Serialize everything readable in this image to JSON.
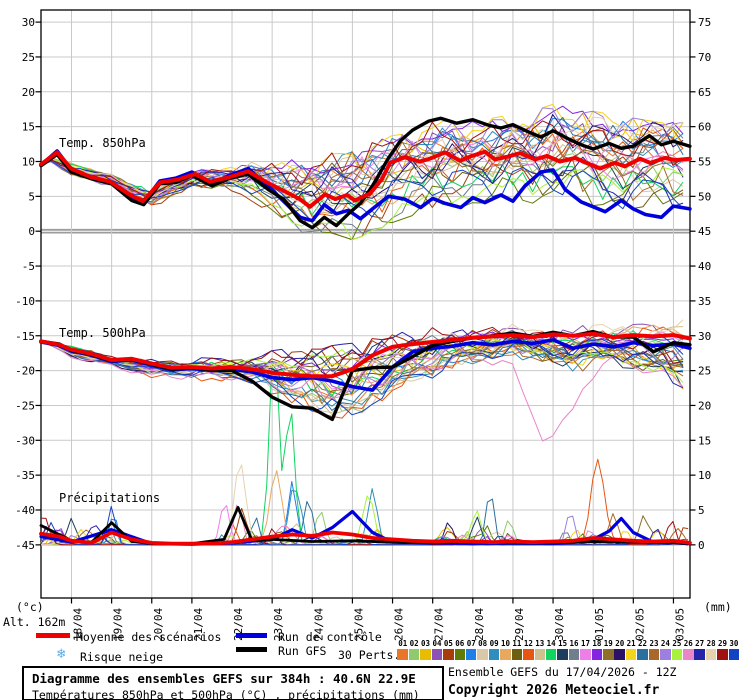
{
  "axes": {
    "unit_left": "(°c)",
    "unit_right": "(mm)",
    "alt_label": "Alt. 162m",
    "left_ticks": [
      "30",
      "25",
      "20",
      "15",
      "10",
      "5",
      "0",
      "-5",
      "-10",
      "-15",
      "-20",
      "-25",
      "-30",
      "-35",
      "-40",
      "-45"
    ],
    "right_ticks": [
      "75",
      "70",
      "65",
      "60",
      "55",
      "50",
      "45",
      "40",
      "35",
      "30",
      "25",
      "20",
      "15",
      "10",
      "5",
      "0"
    ]
  },
  "panels": {
    "t850_label": "Temp. 850hPa",
    "t500_label": "Temp. 500hPa",
    "precip_label": "Précipitations"
  },
  "legend": {
    "mean": "Moyenne des scénarios",
    "control": "Run de contrôle",
    "gfs": "Run GFS",
    "perts": "30 Perts.",
    "snow": "Risque neige",
    "snow_glyph": "❄"
  },
  "footer": {
    "title_line1": "Diagramme des ensembles GEFS sur 384h : 40.6N 22.9E",
    "title_line2": "Températures 850hPa et 500hPa (°C) , précipitations (mm)",
    "run_info": "Ensemble GEFS du 17/04/2026 - 12Z",
    "copyright": "Copyright 2026 Meteociel.fr"
  },
  "members": [
    {
      "id": "01",
      "color": "#e87628"
    },
    {
      "id": "02",
      "color": "#8fca6e"
    },
    {
      "id": "03",
      "color": "#e8bc00"
    },
    {
      "id": "04",
      "color": "#8d52b4"
    },
    {
      "id": "05",
      "color": "#a83c0a"
    },
    {
      "id": "06",
      "color": "#5f7d05"
    },
    {
      "id": "07",
      "color": "#1e7fe8"
    },
    {
      "id": "08",
      "color": "#d9c9a8"
    },
    {
      "id": "09",
      "color": "#2e8fbe"
    },
    {
      "id": "10",
      "color": "#e8a85f"
    },
    {
      "id": "11",
      "color": "#6e5f10"
    },
    {
      "id": "12",
      "color": "#e85510"
    },
    {
      "id": "13",
      "color": "#cfc08f"
    },
    {
      "id": "14",
      "color": "#0fd45f"
    },
    {
      "id": "15",
      "color": "#1d3d5f"
    },
    {
      "id": "16",
      "color": "#6f7f8c"
    },
    {
      "id": "17",
      "color": "#ee7fe8"
    },
    {
      "id": "18",
      "color": "#8224e0"
    },
    {
      "id": "19",
      "color": "#8f6f2a"
    },
    {
      "id": "20",
      "color": "#2a1266"
    },
    {
      "id": "21",
      "color": "#f2d41c"
    },
    {
      "id": "22",
      "color": "#2a6f9e"
    },
    {
      "id": "23",
      "color": "#a8682a"
    },
    {
      "id": "24",
      "color": "#9d7fe0"
    },
    {
      "id": "25",
      "color": "#a8f23c"
    },
    {
      "id": "26",
      "color": "#ea85c8"
    },
    {
      "id": "27",
      "color": "#2424a8"
    },
    {
      "id": "28",
      "color": "#e5d3ad"
    },
    {
      "id": "29",
      "color": "#9e1212"
    },
    {
      "id": "30",
      "color": "#1243c4"
    }
  ],
  "colors": {
    "mean": "#ee0000",
    "control": "#0000dd",
    "gfs": "#000000",
    "grid": "#c9c9c9",
    "zero_line": "#9c9c9c",
    "frame": "#000000",
    "snow": "#5aabe8"
  },
  "chart_data": {
    "type": "line",
    "title": "Diagramme des ensembles GEFS sur 384h : 40.6N 22.9E",
    "subtitle": "Températures 850hPa et 500hPa (°C) , précipitations (mm)",
    "run": "Ensemble GEFS du 17/04/2026 - 12Z",
    "location": "40.6N 22.9E",
    "altitude": "Alt. 162m",
    "x_axis": {
      "dates": [
        "18/04",
        "19/04",
        "20/04",
        "21/04",
        "22/04",
        "23/04",
        "24/04",
        "25/04",
        "26/04",
        "27/04",
        "28/04",
        "29/04",
        "30/04",
        "01/05",
        "02/05",
        "03/05"
      ],
      "start_offset_days": -0.76,
      "end_offset_days": 15.41
    },
    "y_left": {
      "label": "(°c)",
      "min": -45,
      "max": 30,
      "tick_step": 5
    },
    "y_right": {
      "label": "(mm)",
      "min": 0,
      "max": 75,
      "tick_step": 5
    },
    "grid": true,
    "series": {
      "mean_850": {
        "d": [
          -0.76,
          -0.36,
          -0.01,
          0.46,
          0.96,
          1.46,
          1.78,
          2.21,
          2.65,
          3.08,
          3.45,
          3.9,
          4.4,
          4.87,
          5.32,
          5.69,
          5.94,
          6.32,
          6.57,
          6.87,
          7.06,
          7.44,
          7.74,
          7.94,
          8.31,
          8.68,
          8.93,
          9.31,
          9.68,
          9.93,
          10.3,
          10.55,
          10.88,
          11.18,
          11.55,
          11.85,
          12.17,
          12.55,
          12.92,
          13.17,
          13.54,
          13.79,
          14.17,
          14.42,
          14.79,
          15.04,
          15.41
        ],
        "v": [
          9.6,
          11.3,
          9.0,
          7.8,
          7.1,
          5.2,
          4.3,
          7.0,
          7.4,
          8.2,
          7.1,
          7.7,
          8.6,
          7.0,
          5.7,
          4.6,
          3.5,
          5.3,
          4.6,
          5.2,
          4.4,
          5.4,
          7.5,
          9.8,
          10.6,
          10.0,
          10.4,
          11.3,
          10.1,
          10.7,
          11.4,
          10.3,
          10.7,
          11.2,
          10.3,
          10.8,
          10.0,
          10.5,
          9.6,
          9.0,
          9.8,
          9.3,
          10.4,
          9.8,
          10.5,
          10.2,
          10.4
        ]
      },
      "control_850": {
        "d": [
          -0.76,
          -0.36,
          0,
          0.5,
          1,
          1.5,
          1.78,
          2.2,
          2.6,
          3,
          3.5,
          3.9,
          4.4,
          4.9,
          5.3,
          5.7,
          6,
          6.3,
          6.6,
          6.9,
          7.2,
          7.5,
          7.9,
          8.3,
          8.7,
          9,
          9.3,
          9.7,
          10,
          10.3,
          10.7,
          11,
          11.3,
          11.7,
          12,
          12.3,
          12.7,
          13,
          13.3,
          13.7,
          14,
          14.3,
          14.7,
          15,
          15.41
        ],
        "v": [
          9.5,
          11.5,
          8.8,
          7.6,
          7.0,
          4.6,
          4.0,
          7.2,
          7.6,
          8.5,
          6.8,
          7.9,
          9.0,
          6.5,
          4.2,
          2.0,
          1.5,
          3.8,
          2.5,
          3.0,
          1.8,
          3.2,
          5.0,
          4.6,
          3.4,
          4.7,
          4.0,
          3.4,
          4.8,
          4.1,
          5.2,
          4.3,
          6.5,
          8.5,
          8.8,
          6.0,
          4.2,
          3.5,
          2.8,
          4.4,
          3.2,
          2.4,
          2.0,
          3.6,
          3.2
        ]
      },
      "gfs_850": {
        "d": [
          -0.76,
          -0.36,
          0,
          0.5,
          1,
          1.5,
          1.8,
          2.2,
          2.6,
          3,
          3.5,
          3.9,
          4.4,
          4.9,
          5.3,
          5.7,
          6,
          6.3,
          6.6,
          6.9,
          7.2,
          7.5,
          7.9,
          8.2,
          8.5,
          8.9,
          9.2,
          9.6,
          10,
          10.4,
          10.7,
          11,
          11.4,
          11.7,
          12,
          12.4,
          12.7,
          13,
          13.4,
          13.7,
          14,
          14.4,
          14.7,
          15,
          15.41
        ],
        "v": [
          9.4,
          11.0,
          8.5,
          7.5,
          6.8,
          4.4,
          3.8,
          6.8,
          7.0,
          8.0,
          6.5,
          7.5,
          8.2,
          6.0,
          4.5,
          1.5,
          0.5,
          2.0,
          0.8,
          2.5,
          4.0,
          6.5,
          10.5,
          13.0,
          14.5,
          15.8,
          16.2,
          15.5,
          16.0,
          15.2,
          14.8,
          15.3,
          14.2,
          13.5,
          14.4,
          13.2,
          12.4,
          11.8,
          12.6,
          11.9,
          12.2,
          13.7,
          12.4,
          12.9,
          12.2
        ]
      },
      "mean_500": {
        "d": [
          -0.76,
          -0.3,
          0,
          0.5,
          1,
          1.5,
          2,
          2.5,
          3,
          3.5,
          4,
          4.5,
          5,
          5.5,
          6,
          6.5,
          7,
          7.5,
          8,
          8.5,
          9,
          9.5,
          10,
          10.5,
          11,
          11.5,
          12,
          12.5,
          13,
          13.5,
          14,
          14.5,
          15,
          15.41
        ],
        "v": [
          -15.8,
          -16.3,
          -17.0,
          -17.6,
          -18.5,
          -18.3,
          -19.0,
          -19.6,
          -19.5,
          -19.7,
          -19.5,
          -19.8,
          -20.3,
          -20.6,
          -20.8,
          -20.8,
          -19.8,
          -17.8,
          -16.6,
          -16.2,
          -15.9,
          -15.6,
          -15.3,
          -15.1,
          -14.9,
          -15.2,
          -14.8,
          -15.0,
          -14.7,
          -15.2,
          -14.9,
          -15.1,
          -14.9,
          -15.4
        ]
      },
      "control_500": {
        "d": [
          -0.76,
          -0.3,
          0,
          0.5,
          1,
          1.5,
          2,
          2.5,
          3,
          3.5,
          4,
          4.5,
          5,
          5.5,
          6,
          6.5,
          7,
          7.5,
          8,
          8.5,
          9,
          9.5,
          10,
          10.5,
          11,
          11.5,
          12,
          12.5,
          13,
          13.5,
          14,
          14.5,
          15,
          15.41
        ],
        "v": [
          -15.9,
          -16.4,
          -17.2,
          -17.8,
          -18.7,
          -18.5,
          -19.2,
          -19.9,
          -19.7,
          -20.0,
          -19.8,
          -20.2,
          -21.0,
          -21.3,
          -21.0,
          -21.5,
          -22.3,
          -22.8,
          -19.5,
          -17.3,
          -16.8,
          -16.5,
          -16.0,
          -16.3,
          -15.8,
          -16.1,
          -15.6,
          -16.8,
          -16.2,
          -16.6,
          -16.0,
          -16.4,
          -16.2,
          -16.8
        ]
      },
      "gfs_500": {
        "d": [
          -0.76,
          -0.3,
          0,
          0.5,
          1,
          1.5,
          2,
          2.5,
          3,
          3.5,
          4,
          4.5,
          5,
          5.5,
          6,
          6.5,
          7,
          7.5,
          8,
          8.5,
          9,
          9.5,
          10,
          10.5,
          11,
          11.5,
          12,
          12.5,
          13,
          13.5,
          14,
          14.5,
          15,
          15.41
        ],
        "v": [
          -15.8,
          -16.2,
          -17.1,
          -17.7,
          -18.6,
          -18.4,
          -19.1,
          -19.8,
          -19.6,
          -19.9,
          -20.0,
          -21.5,
          -23.8,
          -25.2,
          -25.4,
          -27.0,
          -20.0,
          -19.6,
          -19.5,
          -18.0,
          -16.4,
          -15.8,
          -15.3,
          -15.0,
          -14.6,
          -15.1,
          -14.5,
          -15.0,
          -14.4,
          -15.2,
          -15.2,
          -17.3,
          -16.0,
          -16.3
        ]
      },
      "mean_precip": {
        "d": [
          -0.76,
          -0.3,
          0,
          0.5,
          1,
          1.5,
          2,
          2.5,
          3,
          3.5,
          4,
          4.5,
          5,
          5.5,
          6,
          6.5,
          7,
          7.5,
          8,
          8.5,
          9,
          9.5,
          10,
          10.5,
          11,
          11.5,
          12,
          12.5,
          13,
          13.5,
          14,
          14.5,
          15,
          15.41
        ],
        "v": [
          1.6,
          1.2,
          0.6,
          0.3,
          1.8,
          0.8,
          0.3,
          0.2,
          0.2,
          0.2,
          0.4,
          0.8,
          1.2,
          1.5,
          1.3,
          1.8,
          1.5,
          1.0,
          0.8,
          0.6,
          0.5,
          0.6,
          0.5,
          0.4,
          0.5,
          0.4,
          0.5,
          0.6,
          1.0,
          0.8,
          0.6,
          0.5,
          0.6,
          0.3
        ]
      },
      "control_precip": {
        "d": [
          -0.76,
          0,
          1,
          2,
          3,
          4,
          5,
          5.5,
          6,
          6.5,
          7,
          7.5,
          8,
          9,
          10,
          11,
          12,
          12.5,
          13,
          13.4,
          13.7,
          14,
          14.5,
          15,
          15.41
        ],
        "v": [
          1.2,
          0.4,
          2.2,
          0.2,
          0.1,
          0.3,
          0.8,
          2.2,
          1.0,
          2.5,
          4.8,
          1.8,
          0.4,
          0.3,
          0.2,
          0.3,
          0.2,
          0.4,
          0.8,
          2.0,
          3.8,
          1.8,
          0.4,
          0.3,
          0.2
        ]
      },
      "gfs_precip": {
        "d": [
          -0.76,
          0,
          0.5,
          1,
          1.5,
          2,
          3,
          3.8,
          4.15,
          4.5,
          5,
          6,
          7,
          8,
          9,
          10,
          11,
          12,
          13,
          14,
          15,
          15.41
        ],
        "v": [
          2.8,
          0.6,
          0.4,
          3.2,
          0.5,
          0.2,
          0.2,
          0.8,
          5.4,
          0.6,
          0.8,
          0.5,
          0.6,
          0.4,
          0.3,
          0.4,
          0.3,
          0.3,
          0.5,
          0.4,
          0.3,
          0.2
        ]
      }
    },
    "envelope_850": {
      "d": [
        -0.76,
        0,
        1,
        2,
        3,
        4,
        4.5,
        5,
        5.5,
        6,
        6.5,
        7,
        7.5,
        8,
        8.5,
        9,
        9.5,
        10,
        10.5,
        11,
        11.5,
        12,
        12.5,
        13,
        13.5,
        14,
        14.5,
        15,
        15.41
      ],
      "min": [
        9.0,
        7.8,
        6.2,
        3.3,
        5.8,
        5.5,
        4.0,
        2.5,
        0.0,
        -0.8,
        -0.5,
        -1.5,
        -0.5,
        1.0,
        2.0,
        3.0,
        3.0,
        3.5,
        3.0,
        4.0,
        3.5,
        4.0,
        4.0,
        3.0,
        2.5,
        3.0,
        3.5,
        3.0,
        3.0
      ],
      "max": [
        10.5,
        9.8,
        8.6,
        6.2,
        9.3,
        9.8,
        10.8,
        10.2,
        11.0,
        10.5,
        11.5,
        12.0,
        13.0,
        14.0,
        15.0,
        16.0,
        16.0,
        16.0,
        16.5,
        17.0,
        17.5,
        18.5,
        18.0,
        17.5,
        17.0,
        16.5,
        16.0,
        16.0,
        15.8
      ]
    },
    "envelope_500": {
      "d": [
        -0.76,
        0,
        1,
        2,
        3,
        4,
        4.5,
        5,
        5.5,
        6,
        6.5,
        7,
        7.5,
        8,
        8.5,
        9,
        9.5,
        10,
        10.5,
        11,
        11.5,
        12,
        12.5,
        13,
        13.5,
        14,
        14.5,
        15,
        15.41
      ],
      "min": [
        -16.5,
        -18.2,
        -19.6,
        -21.2,
        -21.5,
        -21.8,
        -22.3,
        -23.5,
        -25.5,
        -26.0,
        -26.8,
        -27.5,
        -25.0,
        -24.0,
        -22.5,
        -21.5,
        -20.5,
        -20.0,
        -19.5,
        -19.0,
        -19.5,
        -20.0,
        -21.0,
        -20.0,
        -19.5,
        -20.0,
        -21.0,
        -22.0,
        -23.5
      ],
      "max": [
        -15.3,
        -16.4,
        -17.6,
        -18.3,
        -17.9,
        -18.0,
        -17.6,
        -17.0,
        -16.6,
        -16.4,
        -16.2,
        -15.8,
        -15.2,
        -14.6,
        -14.0,
        -13.6,
        -13.2,
        -13.0,
        -12.8,
        -12.6,
        -12.8,
        -13.0,
        -13.2,
        -12.8,
        -12.6,
        -12.8,
        -13.0,
        -12.6,
        -12.4
      ]
    },
    "precip_events": [
      [
        29,
        -0.7,
        4.3,
        0.18
      ],
      [
        30,
        -0.5,
        3.2,
        0.15
      ],
      [
        27,
        -0.6,
        2.8,
        0.15
      ],
      [
        4,
        -0.3,
        2.5,
        0.15
      ],
      [
        15,
        0.0,
        3.8,
        0.15
      ],
      [
        3,
        -0.45,
        2.0,
        0.12
      ],
      [
        30,
        1.0,
        5.5,
        0.14
      ],
      [
        7,
        1.05,
        4.5,
        0.13
      ],
      [
        9,
        1.0,
        3.5,
        0.14
      ],
      [
        16,
        0.95,
        2.5,
        0.13
      ],
      [
        13,
        1.1,
        1.8,
        0.12
      ],
      [
        17,
        3.82,
        6.1,
        0.16
      ],
      [
        12,
        4.0,
        3.4,
        0.14
      ],
      [
        28,
        4.2,
        11.9,
        0.2
      ],
      [
        5,
        4.25,
        5.2,
        0.15
      ],
      [
        26,
        4.15,
        6.0,
        0.15
      ],
      [
        14,
        5.05,
        29.0,
        0.16
      ],
      [
        14,
        5.45,
        20.0,
        0.16
      ],
      [
        10,
        5.1,
        10.4,
        0.2
      ],
      [
        9,
        5.52,
        8.0,
        0.16
      ],
      [
        7,
        5.5,
        9.1,
        0.15
      ],
      [
        22,
        5.9,
        6.5,
        0.16
      ],
      [
        2,
        6.2,
        4.8,
        0.16
      ],
      [
        25,
        7.4,
        7.2,
        0.2
      ],
      [
        9,
        7.5,
        8.1,
        0.16
      ],
      [
        20,
        9.4,
        3.3,
        0.15
      ],
      [
        25,
        10.1,
        4.8,
        0.16
      ],
      [
        15,
        10.1,
        4.0,
        0.15
      ],
      [
        22,
        10.43,
        7.5,
        0.14
      ],
      [
        2,
        10.9,
        3.6,
        0.15
      ],
      [
        24,
        12.43,
        4.8,
        0.14
      ],
      [
        12,
        13.1,
        11.9,
        0.22
      ],
      [
        21,
        13.8,
        2.2,
        0.15
      ],
      [
        23,
        13.5,
        4.5,
        0.16
      ],
      [
        19,
        14.25,
        4.0,
        0.15
      ],
      [
        29,
        14.95,
        3.6,
        0.14
      ],
      [
        5,
        15.3,
        3.0,
        0.13
      ]
    ]
  }
}
